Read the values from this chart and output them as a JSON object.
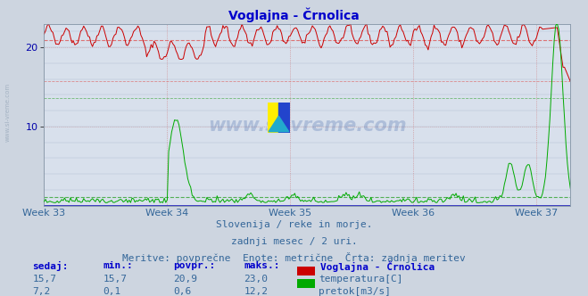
{
  "title": "Voglajna - Črnolica",
  "bg_color": "#cdd5e0",
  "plot_bg_color": "#d8e0ec",
  "title_color": "#0000cc",
  "axis_color": "#0000aa",
  "text_color": "#336699",
  "temp_color": "#cc0000",
  "flow_color": "#00aa00",
  "hline_temp_color": "#dd6666",
  "hline_flow_color": "#44aa44",
  "xlabel_color": "#336699",
  "n_points": 360,
  "weeks": [
    "Week 33",
    "Week 34",
    "Week 35",
    "Week 36",
    "Week 37"
  ],
  "week_positions": [
    0,
    84,
    168,
    252,
    336
  ],
  "temp_min": 15.7,
  "temp_max": 23.0,
  "temp_avg": 20.9,
  "temp_last": 15.7,
  "flow_min": 0.1,
  "flow_max": 12.2,
  "flow_avg": 0.6,
  "flow_last": 7.2,
  "ylim_left": [
    0,
    23.0
  ],
  "ylim_right": [
    0,
    12.2
  ],
  "subtitle1": "Slovenija / reke in morje.",
  "subtitle2": "zadnji mesec / 2 uri.",
  "subtitle3": "Meritve: povprečne  Enote: metrične  Črta: zadnja meritev",
  "legend_title": "Voglajna - Črnolica",
  "legend_temp": "temperatura[C]",
  "legend_flow": "pretok[m3/s]",
  "table_headers": [
    "sedaj:",
    "min.:",
    "povpr.:",
    "maks.:"
  ],
  "table_temp": [
    "15,7",
    "15,7",
    "20,9",
    "23,0"
  ],
  "table_flow": [
    "7,2",
    "0,1",
    "0,6",
    "12,2"
  ],
  "watermark": "www.si-vreme.com"
}
